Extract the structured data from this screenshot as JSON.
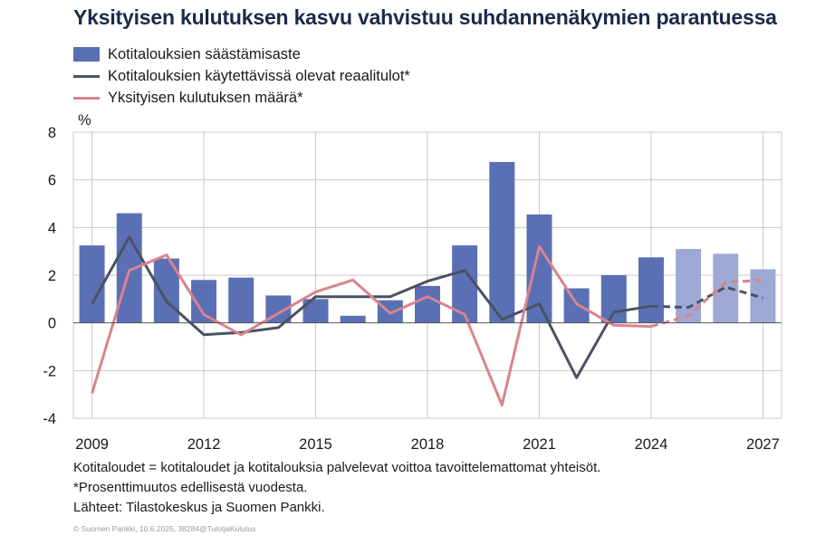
{
  "title": "Yksityisen kulutuksen kasvu vahvistuu suhdannenäkymien parantuessa",
  "legend": {
    "bars": "Kotitalouksien säästämisaste",
    "income": "Kotitalouksien käytettävissä olevat reaalitulot*",
    "consumption": "Yksityisen kulutuksen määrä*"
  },
  "footnotes": {
    "line1": "Kotitaloudet = kotitaloudet ja kotitalouksia palvelevat voittoa tavoittelemattomat yhteisöt.",
    "line2": "*Prosenttimuutos edellisestä vuodesta.",
    "line3": "Lähteet: Tilastokeskus ja Suomen Pankki."
  },
  "credit": "© Suomen Pankki, 10.6.2025, 38284@TulotjaKulutus",
  "colors": {
    "bar": "#5b6fb5",
    "bar_forecast": "#9ea8d4",
    "income": "#4a5262",
    "consumption": "#d9848c",
    "grid": "#c8c8c8",
    "title": "#1b2a4a"
  },
  "chart_data": {
    "type": "bar",
    "ylabel": "%",
    "ylim": [
      -4,
      8
    ],
    "yticks": [
      -4,
      -2,
      0,
      2,
      4,
      6,
      8
    ],
    "ytick_labels": [
      "-4",
      "-2",
      "0",
      "2",
      "4",
      "6",
      "8"
    ],
    "x": [
      2009,
      2010,
      2011,
      2012,
      2013,
      2014,
      2015,
      2016,
      2017,
      2018,
      2019,
      2020,
      2021,
      2022,
      2023,
      2024,
      2025,
      2026,
      2027
    ],
    "xtick_labels": [
      "2009",
      "2012",
      "2015",
      "2018",
      "2021",
      "2024",
      "2027"
    ],
    "forecast_from": 2025,
    "grid": true,
    "series": [
      {
        "name": "Kotitalouksien säästämisaste",
        "kind": "bar",
        "values": [
          3.25,
          4.6,
          2.7,
          1.8,
          1.9,
          1.15,
          1.0,
          0.3,
          0.95,
          1.55,
          3.25,
          6.75,
          4.55,
          1.45,
          2.0,
          2.75,
          3.1,
          2.9,
          2.25
        ]
      },
      {
        "name": "Kotitalouksien käytettävissä olevat reaalitulot*",
        "kind": "line",
        "values": [
          0.8,
          3.6,
          0.9,
          -0.5,
          -0.4,
          -0.2,
          1.1,
          1.1,
          1.1,
          1.75,
          2.2,
          0.15,
          0.8,
          -2.3,
          0.45,
          0.7,
          0.65,
          1.5,
          1.05
        ]
      },
      {
        "name": "Yksityisen kulutuksen määrä*",
        "kind": "line",
        "values": [
          -2.95,
          2.2,
          2.85,
          0.35,
          -0.5,
          0.4,
          1.3,
          1.8,
          0.4,
          1.1,
          0.35,
          -3.45,
          3.2,
          0.8,
          -0.1,
          -0.15,
          0.3,
          1.7,
          1.8
        ]
      }
    ]
  }
}
